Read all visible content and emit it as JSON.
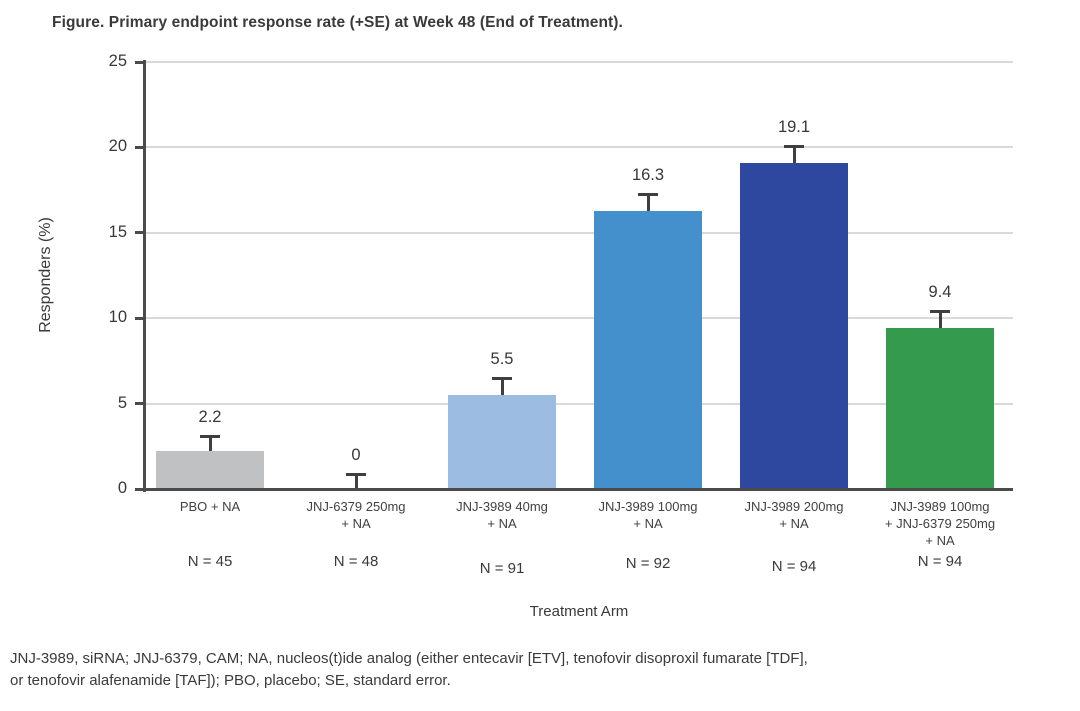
{
  "figure_title": "Figure. Primary endpoint response rate (+SE) at Week 48 (End of Treatment).",
  "footnote": {
    "line1": "JNJ-3989, siRNA; JNJ-6379, CAM; NA, nucleos(t)ide analog (either entecavir [ETV], tenofovir disoproxil fumarate [TDF],",
    "line2": "or tenofovir alafenamide [TAF]); PBO, placebo; SE, standard error."
  },
  "chart_data": {
    "type": "bar",
    "title": "Figure. Primary endpoint response rate (+SE) at Week 48 (End of Treatment).",
    "xlabel": "Treatment Arm",
    "ylabel": "Responders (%)",
    "ylim": [
      0,
      25
    ],
    "yticks": [
      0,
      5,
      10,
      15,
      20,
      25
    ],
    "grid": true,
    "legend_position": "none",
    "categories": [
      "PBO + NA",
      "JNJ-6379 250mg + NA",
      "JNJ-3989 40mg + NA",
      "JNJ-3989 100mg + NA",
      "JNJ-3989 200mg + NA",
      "JNJ-3989 100mg + JNJ-6379 250mg + NA"
    ],
    "category_lines": [
      [
        "PBO + NA"
      ],
      [
        "JNJ-6379 250mg",
        "+ NA"
      ],
      [
        "JNJ-3989 40mg",
        "+ NA"
      ],
      [
        "JNJ-3989 100mg",
        "+ NA"
      ],
      [
        "JNJ-3989 200mg",
        "+ NA"
      ],
      [
        "JNJ-3989 100mg",
        "+ JNJ-6379 250mg",
        "+ NA"
      ]
    ],
    "values": [
      2.2,
      0,
      5.5,
      16.3,
      19.1,
      9.4
    ],
    "value_labels": [
      "2.2",
      "0",
      "5.5",
      "16.3",
      "19.1",
      "9.4"
    ],
    "se_upper": [
      0.9,
      0.85,
      1.0,
      1.0,
      1.0,
      1.0
    ],
    "n_labels": [
      "N = 45",
      "N = 48",
      "N = 91",
      "N = 92",
      "N = 94",
      "N = 94"
    ],
    "bar_colors": [
      "#c0c1c3",
      null,
      "#9dbce2",
      "#4390cd",
      "#2d489e",
      "#349b4e"
    ],
    "colors": {
      "axis": "#4b4b4b",
      "grid": "#d9d9d9",
      "text": "#3a3a3a",
      "error_bar": "#3f3f3f"
    }
  }
}
